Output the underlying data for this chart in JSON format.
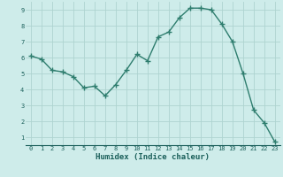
{
  "x": [
    0,
    1,
    2,
    3,
    4,
    5,
    6,
    7,
    8,
    9,
    10,
    11,
    12,
    13,
    14,
    15,
    16,
    17,
    18,
    19,
    20,
    21,
    22,
    23
  ],
  "y": [
    6.1,
    5.9,
    5.2,
    5.1,
    4.8,
    4.1,
    4.2,
    3.6,
    4.3,
    5.2,
    6.2,
    5.8,
    7.3,
    7.6,
    8.5,
    9.1,
    9.1,
    9.0,
    8.1,
    7.0,
    5.0,
    2.7,
    1.9,
    0.7
  ],
  "line_color": "#2e7d6e",
  "marker": "+",
  "marker_size": 4,
  "bg_color": "#ceecea",
  "grid_color": "#aed4d0",
  "xlabel": "Humidex (Indice chaleur)",
  "xlabel_color": "#1a5f5a",
  "tick_color": "#1a5f5a",
  "xlim": [
    -0.5,
    23.5
  ],
  "ylim": [
    0.5,
    9.5
  ],
  "yticks": [
    1,
    2,
    3,
    4,
    5,
    6,
    7,
    8,
    9
  ],
  "xticks": [
    0,
    1,
    2,
    3,
    4,
    5,
    6,
    7,
    8,
    9,
    10,
    11,
    12,
    13,
    14,
    15,
    16,
    17,
    18,
    19,
    20,
    21,
    22,
    23
  ],
  "tick_fontsize": 5,
  "xlabel_fontsize": 6.5,
  "linewidth": 1.0
}
